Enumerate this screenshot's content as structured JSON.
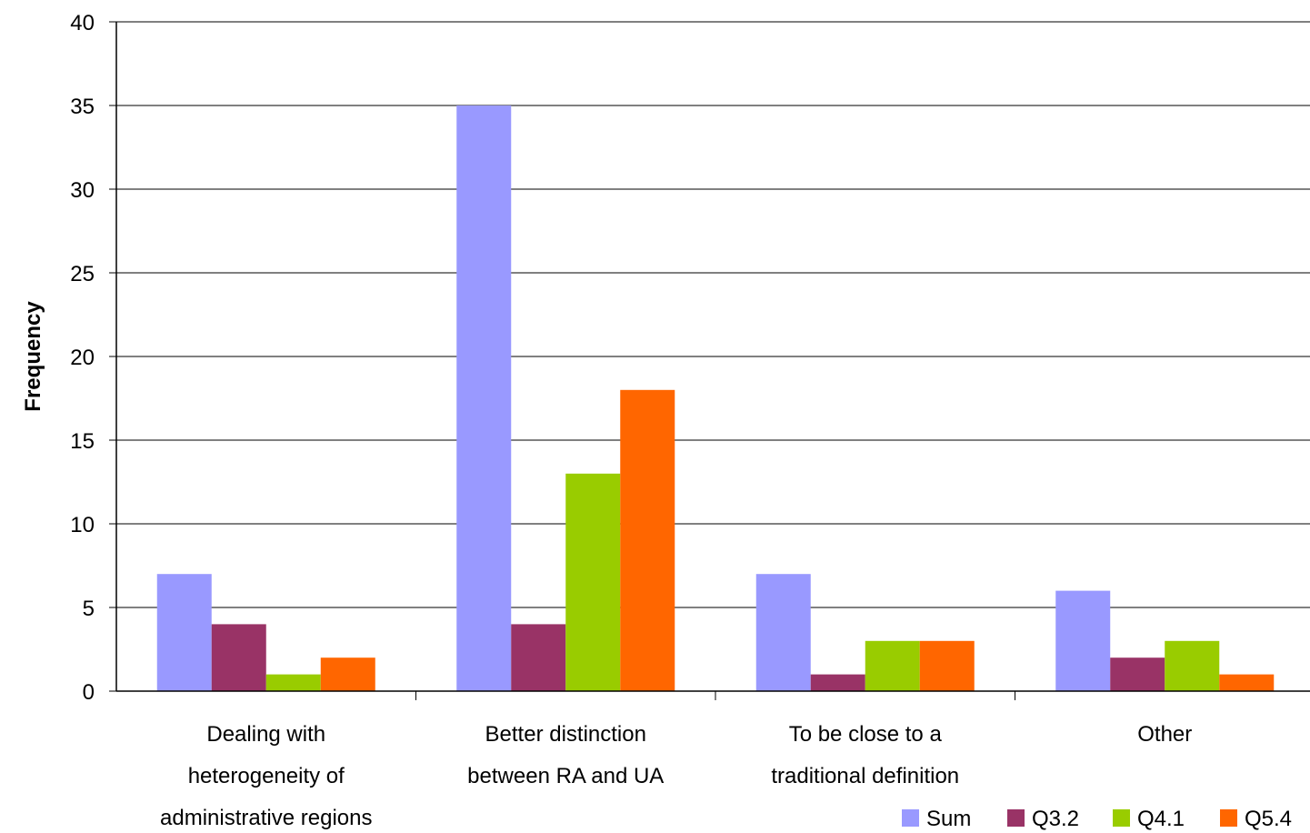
{
  "chart_data": {
    "type": "bar",
    "title": "",
    "xlabel": "",
    "ylabel": "Frequency",
    "ylim": [
      0,
      40
    ],
    "yticks": [
      0,
      5,
      10,
      15,
      20,
      25,
      30,
      35,
      40
    ],
    "grid": true,
    "legend_position": "bottom-right",
    "categories": [
      [
        "Dealing with",
        "heterogeneity of",
        "administrative regions"
      ],
      [
        "Better distinction",
        "between RA and UA"
      ],
      [
        "To be close to a",
        "traditional definition"
      ],
      [
        "Other"
      ]
    ],
    "series": [
      {
        "name": "Sum",
        "color": "#9999ff",
        "values": [
          7,
          35,
          7,
          6
        ]
      },
      {
        "name": "Q3.2",
        "color": "#993366",
        "values": [
          4,
          4,
          1,
          2
        ]
      },
      {
        "name": "Q4.1",
        "color": "#99cc00",
        "values": [
          1,
          13,
          3,
          3
        ]
      },
      {
        "name": "Q5.4",
        "color": "#ff6600",
        "values": [
          2,
          18,
          3,
          1
        ]
      }
    ]
  }
}
